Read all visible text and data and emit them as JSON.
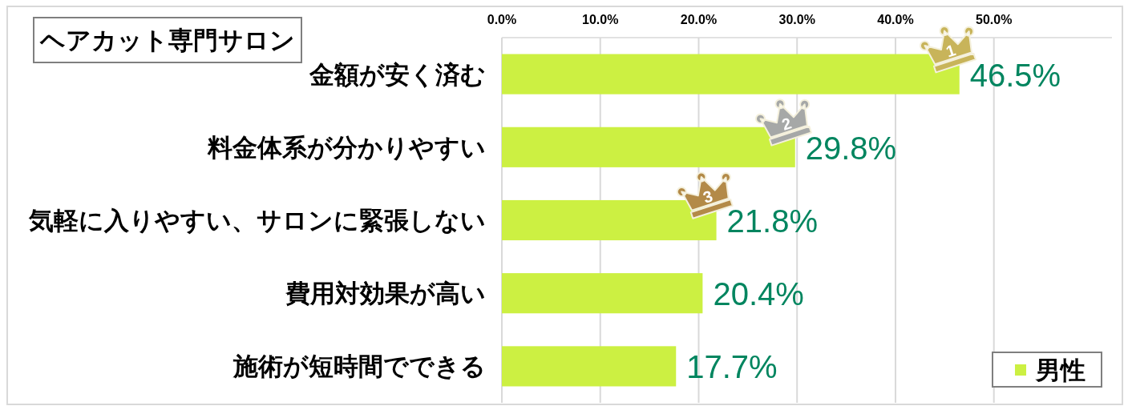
{
  "chart_data": {
    "type": "bar",
    "orientation": "horizontal",
    "title": "ヘアカット専門サロン",
    "categories": [
      "金額が安く済む",
      "料金体系が分かりやすい",
      "気軽に入りやすい、サロンに緊張しない",
      "費用対効果が高い",
      "施術が短時間でできる"
    ],
    "series": [
      {
        "name": "男性",
        "color": "#ccf042",
        "values": [
          46.5,
          29.8,
          21.8,
          20.4,
          17.7
        ],
        "value_labels": [
          "46.5%",
          "29.8%",
          "21.8%",
          "20.4%",
          "17.7%"
        ]
      }
    ],
    "xlim": [
      0,
      62
    ],
    "xticks": [
      {
        "value": 0,
        "label": "0.0%"
      },
      {
        "value": 10,
        "label": "10.0%"
      },
      {
        "value": 20,
        "label": "20.0%"
      },
      {
        "value": 30,
        "label": "30.0%"
      },
      {
        "value": 40,
        "label": "40.0%"
      },
      {
        "value": 50,
        "label": "50.0%"
      }
    ],
    "grid": "x",
    "legend": "bottom right",
    "annotations": [
      {
        "text": "1",
        "x": 46.5,
        "y": "金額が安く済む"
      },
      {
        "text": "2",
        "x": 29.8,
        "y": "料金体系が分かりやすい"
      },
      {
        "text": "3",
        "x": 21.8,
        "y": "気軽に入りやすい、サロンに緊張しない"
      }
    ]
  }
}
